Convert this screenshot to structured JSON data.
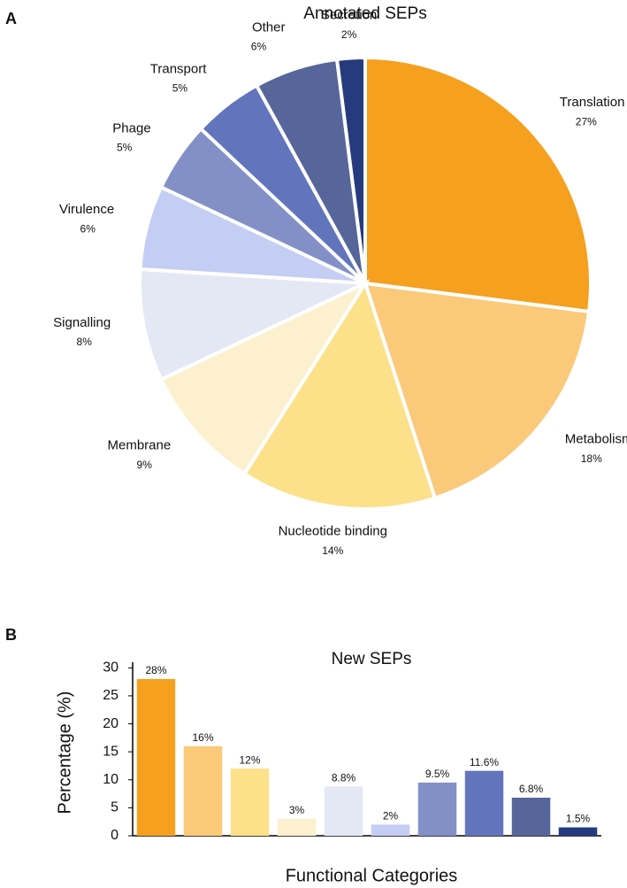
{
  "chart_data": [
    {
      "type": "pie",
      "panel": "A",
      "title": "Annotated SEPs",
      "categories": [
        "Translation",
        "Metabolism",
        "Nucleotide binding",
        "Membrane",
        "Signalling",
        "Virulence",
        "Phage",
        "Transport",
        "Other",
        "Secretion"
      ],
      "values": [
        27,
        18,
        14,
        9,
        8,
        6,
        5,
        5,
        6,
        2
      ],
      "value_labels": [
        "27%",
        "18%",
        "14%",
        "9%",
        "8%",
        "6%",
        "5%",
        "5%",
        "6%",
        "2%"
      ],
      "colors": [
        "#f5a01e",
        "#fbc97a",
        "#fde08a",
        "#fdf0cf",
        "#e4e8f4",
        "#c4cdf3",
        "#8390c8",
        "#6275bc",
        "#56659a",
        "#263a7e"
      ]
    },
    {
      "type": "bar",
      "panel": "B",
      "title": "New SEPs",
      "x_label": "Functional Categories",
      "y_label": "Percentage (%)",
      "categories": [
        null,
        null,
        null,
        null,
        null,
        null,
        null,
        null,
        null,
        null
      ],
      "values": [
        28,
        16,
        12,
        3,
        8.8,
        2,
        9.5,
        11.6,
        6.8,
        1.5
      ],
      "value_labels": [
        "28%",
        "16%",
        "12%",
        "3%",
        "8.8%",
        "2%",
        "9.5%",
        "11.6%",
        "6.8%",
        "1.5%"
      ],
      "colors": [
        "#f5a01e",
        "#fbc97a",
        "#fde08a",
        "#fdf0cf",
        "#e4e8f4",
        "#c4cdf3",
        "#8390c8",
        "#6275bc",
        "#56659a",
        "#263a7e"
      ],
      "ylim": [
        0,
        31
      ],
      "yticks": [
        0,
        5,
        10,
        15,
        20,
        25,
        30
      ]
    }
  ]
}
